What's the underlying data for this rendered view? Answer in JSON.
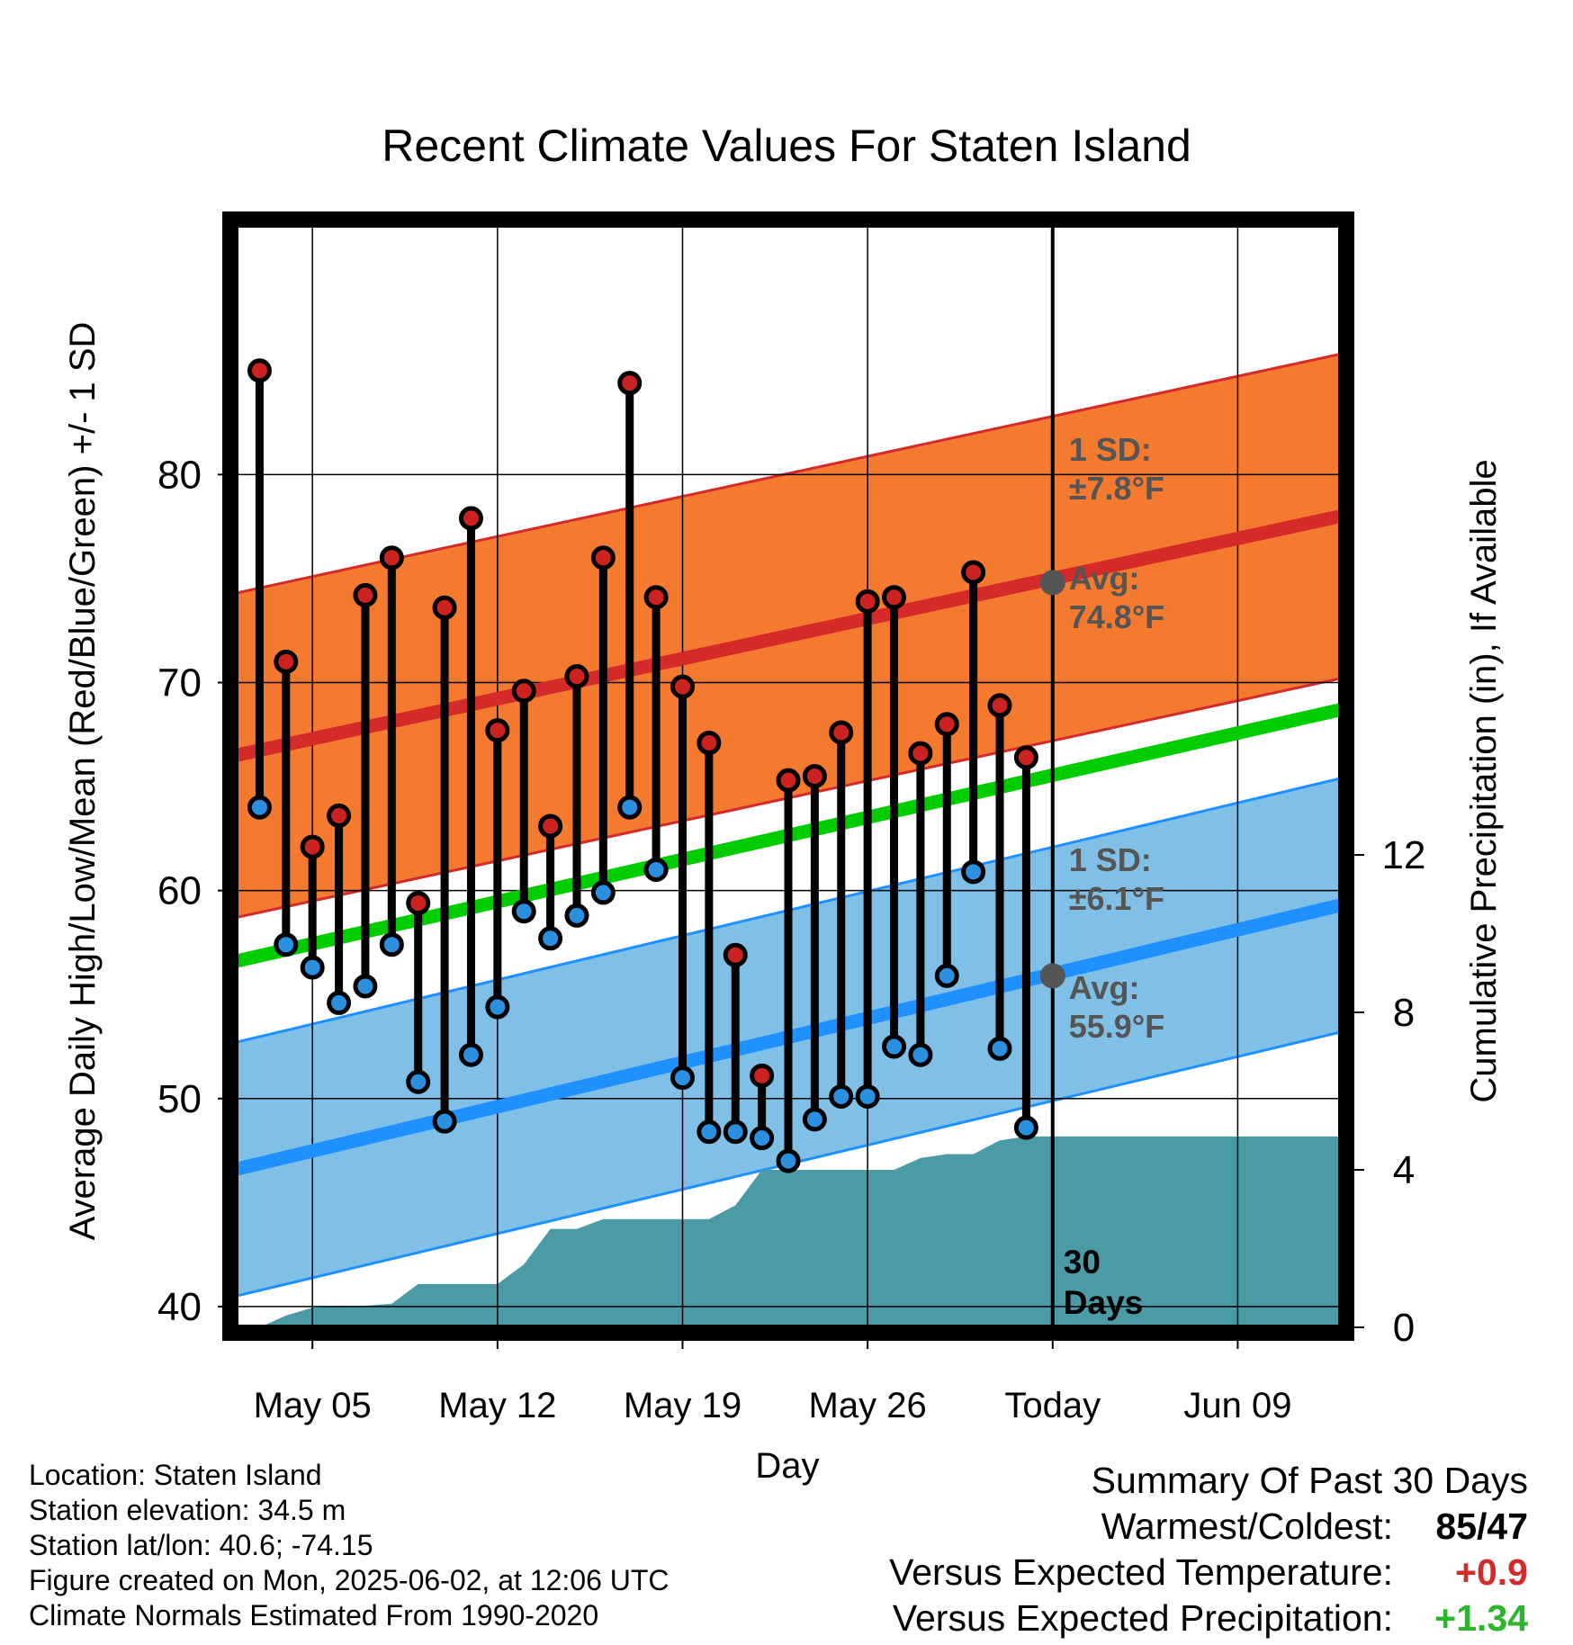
{
  "title": "Recent Climate Values For Staten Island",
  "chart_data": {
    "type": "line",
    "title": "Recent Climate Values For Staten Island",
    "xlabel": "Day",
    "ylabel_left": "Average Daily High/Low/Mean (Red/Blue/Green) +/- 1 SD",
    "ylabel_right": "Cumulative Precipitation (in), If Available",
    "ylim_left": [
      39,
      92
    ],
    "ylim_right": [
      0,
      28
    ],
    "yticks_left": [
      40,
      50,
      60,
      70,
      80
    ],
    "yticks_right": [
      0,
      4,
      8,
      12
    ],
    "xlim": [
      -0.9,
      40.9
    ],
    "x_ticks": [
      {
        "x": 2,
        "label": "May 05"
      },
      {
        "x": 9,
        "label": "May 12"
      },
      {
        "x": 16,
        "label": "May 19"
      },
      {
        "x": 23,
        "label": "May 26"
      },
      {
        "x": 30,
        "label": "Today"
      },
      {
        "x": 37,
        "label": "Jun 09"
      }
    ],
    "today_x": 30,
    "today_label": "30 Days",
    "daily": [
      {
        "high": 85,
        "low": 64
      },
      {
        "high": 71,
        "low": 57.4
      },
      {
        "high": 62.1,
        "low": 56.3
      },
      {
        "high": 63.6,
        "low": 54.6
      },
      {
        "high": 74.2,
        "low": 55.4
      },
      {
        "high": 76,
        "low": 57.4
      },
      {
        "high": 59.4,
        "low": 50.8
      },
      {
        "high": 73.6,
        "low": 48.9
      },
      {
        "high": 77.9,
        "low": 52.1
      },
      {
        "high": 67.7,
        "low": 54.4
      },
      {
        "high": 69.6,
        "low": 59
      },
      {
        "high": 63.1,
        "low": 57.7
      },
      {
        "high": 70.3,
        "low": 58.8
      },
      {
        "high": 76,
        "low": 59.9
      },
      {
        "high": 84.4,
        "low": 64
      },
      {
        "high": 74.1,
        "low": 61
      },
      {
        "high": 69.8,
        "low": 51
      },
      {
        "high": 67.1,
        "low": 48.4
      },
      {
        "high": 56.9,
        "low": 48.4
      },
      {
        "high": 51.1,
        "low": 48.1
      },
      {
        "high": 65.3,
        "low": 47
      },
      {
        "high": 65.5,
        "low": 49
      },
      {
        "high": 67.6,
        "low": 50.1
      },
      {
        "high": 73.9,
        "low": 50.1
      },
      {
        "high": 74.1,
        "low": 52.5
      },
      {
        "high": 66.6,
        "low": 52.1
      },
      {
        "high": 68,
        "low": 55.9
      },
      {
        "high": 75.3,
        "low": 60.9
      },
      {
        "high": 68.9,
        "low": 52.4
      },
      {
        "high": 66.4,
        "low": 48.6
      }
    ],
    "normal_high": {
      "start": 66.5,
      "end": 78,
      "sd": 7.8
    },
    "normal_low": {
      "start": 46.6,
      "end": 59.3,
      "sd": 6.1
    },
    "normal_mean": {
      "start": 56.6,
      "end": 68.7
    },
    "precip_cumulative": [
      [
        0,
        0
      ],
      [
        1,
        0.3
      ],
      [
        2,
        0.5
      ],
      [
        3,
        0.55
      ],
      [
        4,
        0.55
      ],
      [
        5,
        0.6
      ],
      [
        6,
        1.1
      ],
      [
        7,
        1.1
      ],
      [
        8,
        1.1
      ],
      [
        9,
        1.1
      ],
      [
        10,
        1.6
      ],
      [
        11,
        2.5
      ],
      [
        12,
        2.5
      ],
      [
        13,
        2.75
      ],
      [
        14,
        2.75
      ],
      [
        15,
        2.75
      ],
      [
        16,
        2.75
      ],
      [
        17,
        2.75
      ],
      [
        18,
        3.1
      ],
      [
        19,
        4.0
      ],
      [
        20,
        4.0
      ],
      [
        21,
        4.0
      ],
      [
        22,
        4.0
      ],
      [
        23,
        4.0
      ],
      [
        24,
        4.0
      ],
      [
        25,
        4.3
      ],
      [
        26,
        4.4
      ],
      [
        27,
        4.4
      ],
      [
        28,
        4.75
      ],
      [
        29,
        4.85
      ],
      [
        30,
        4.85
      ],
      [
        40.9,
        4.85
      ]
    ],
    "annotations": {
      "high_sd_label": "1 SD:",
      "high_sd_value": "±7.8°F",
      "high_avg_label": "Avg:",
      "high_avg_value": "74.8°F",
      "high_avg": 74.8,
      "low_sd_label": "1 SD:",
      "low_sd_value": "±6.1°F",
      "low_avg_label": "Avg:",
      "low_avg_value": "55.9°F",
      "low_avg": 55.9
    },
    "colors": {
      "high_band": "#f47a30",
      "high_line": "#d42a2a",
      "low_band": "#80bfe6",
      "low_line": "#1e90ff",
      "mean_line": "#00cc00",
      "precip": "#4a9ba5",
      "marker_high": "#cc2222",
      "marker_low": "#2b90e0",
      "annotation": "#555555"
    }
  },
  "footer": {
    "location": "Location: Staten Island",
    "elevation": "Station elevation: 34.5 m",
    "latlon": "Station lat/lon: 40.6; -74.15",
    "created": "Figure created on Mon, 2025-06-02, at 12:06 UTC",
    "normals": "Climate Normals Estimated From 1990-2020"
  },
  "summary": {
    "heading": "Summary Of Past 30 Days",
    "warm_cold_label": "Warmest/Coldest:",
    "warm_cold_value": "85/47",
    "temp_label": "Versus Expected Temperature:",
    "temp_value": "+0.9",
    "precip_label": "Versus Expected Precipitation:",
    "precip_value": "+1.34"
  }
}
